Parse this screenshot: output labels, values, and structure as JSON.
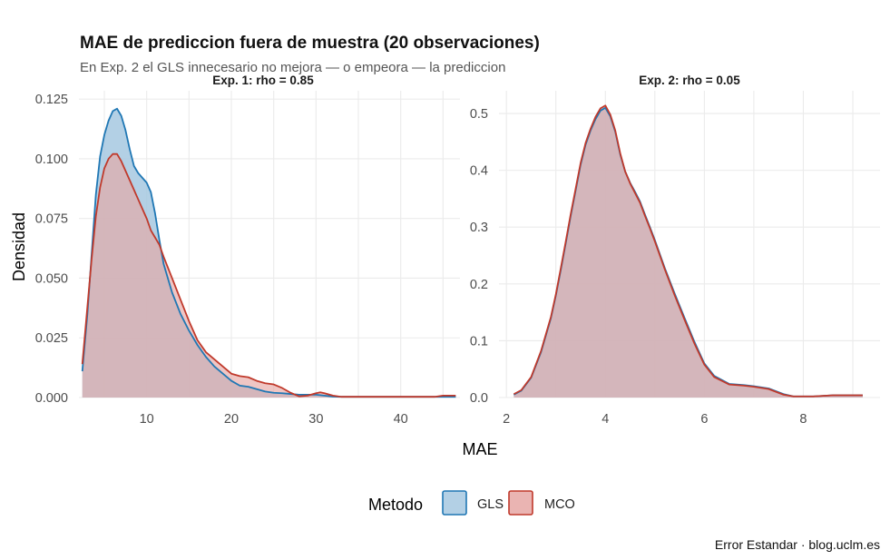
{
  "chart_data": {
    "type": "area",
    "title": "MAE de prediccion fuera de muestra (20 observaciones)",
    "subtitle": "En Exp. 2 el GLS innecesario no mejora — o empeora — la prediccion",
    "xlabel": "MAE",
    "ylabel": "Densidad",
    "caption": "Error Estandar · blog.uclm.es",
    "grid": true,
    "legend": {
      "title": "Metodo",
      "position": "bottom",
      "entries": [
        {
          "label": "GLS",
          "fill": "#a6c8e0",
          "stroke": "#1f77b4"
        },
        {
          "label": "MCO",
          "fill": "#e6a7a5",
          "stroke": "#c0392b"
        }
      ]
    },
    "panels": [
      {
        "strip": "Exp. 1: rho = 0.85",
        "xlim": [
          2,
          47
        ],
        "ylim": [
          0,
          0.1285
        ],
        "xticks": [
          10,
          20,
          30,
          40
        ],
        "xtick_labels": [
          "10",
          "20",
          "30",
          "40"
        ],
        "yticks": [
          0,
          0.025,
          0.05,
          0.075,
          0.1,
          0.125
        ],
        "ytick_labels": [
          "0.000",
          "0.025",
          "0.050",
          "0.075",
          "0.100",
          "0.125"
        ],
        "series": [
          {
            "name": "GLS",
            "x": [
              2.4,
              3.0,
              3.5,
              4.0,
              4.5,
              5.0,
              5.5,
              6.0,
              6.5,
              7.0,
              7.5,
              8.0,
              8.5,
              9.0,
              9.5,
              10.0,
              10.5,
              11.0,
              11.5,
              12.0,
              13.0,
              14.0,
              15.0,
              16.0,
              17.0,
              18.0,
              19.0,
              20.0,
              21.0,
              22.0,
              23.0,
              24.0,
              25.0,
              26.0,
              27.0,
              28.0,
              29.0,
              30.0,
              31.0,
              32.0,
              33.0,
              36.0,
              40.0,
              44.0,
              46.5
            ],
            "y": [
              0.011,
              0.035,
              0.06,
              0.085,
              0.101,
              0.11,
              0.116,
              0.12,
              0.121,
              0.118,
              0.112,
              0.104,
              0.097,
              0.094,
              0.092,
              0.09,
              0.086,
              0.077,
              0.066,
              0.056,
              0.044,
              0.035,
              0.028,
              0.022,
              0.017,
              0.013,
              0.01,
              0.007,
              0.005,
              0.0045,
              0.0035,
              0.0025,
              0.002,
              0.0018,
              0.0015,
              0.0012,
              0.0012,
              0.0012,
              0.0008,
              0.0004,
              0.0003,
              0.0003,
              0.0003,
              0.0003,
              0.0003
            ]
          },
          {
            "name": "MCO",
            "x": [
              2.4,
              3.0,
              3.5,
              4.0,
              4.5,
              5.0,
              5.5,
              6.0,
              6.5,
              7.0,
              7.5,
              8.0,
              8.5,
              9.0,
              9.5,
              10.0,
              10.5,
              11.0,
              11.5,
              12.0,
              13.0,
              14.0,
              15.0,
              16.0,
              17.0,
              18.0,
              19.0,
              20.0,
              21.0,
              22.0,
              23.0,
              24.0,
              25.0,
              26.0,
              27.0,
              28.0,
              29.0,
              30.0,
              30.5,
              31.0,
              32.0,
              33.0,
              36.0,
              40.0,
              44.0,
              45.0,
              46.5
            ],
            "y": [
              0.014,
              0.038,
              0.058,
              0.076,
              0.088,
              0.096,
              0.1,
              0.102,
              0.102,
              0.099,
              0.095,
              0.091,
              0.087,
              0.083,
              0.079,
              0.075,
              0.07,
              0.067,
              0.064,
              0.059,
              0.05,
              0.041,
              0.032,
              0.024,
              0.019,
              0.016,
              0.013,
              0.01,
              0.009,
              0.0085,
              0.007,
              0.006,
              0.0055,
              0.004,
              0.002,
              0.0005,
              0.0008,
              0.0018,
              0.0022,
              0.0018,
              0.0008,
              0.0003,
              0.0003,
              0.0003,
              0.0003,
              0.0008,
              0.0008
            ]
          }
        ]
      },
      {
        "strip": "Exp. 2: rho = 0.05",
        "xlim": [
          1.85,
          9.55
        ],
        "ylim": [
          0,
          0.54
        ],
        "xticks": [
          2,
          4,
          6,
          8
        ],
        "xtick_labels": [
          "2",
          "4",
          "6",
          "8"
        ],
        "yticks": [
          0,
          0.1,
          0.2,
          0.3,
          0.4,
          0.5
        ],
        "ytick_labels": [
          "0.0",
          "0.1",
          "0.2",
          "0.3",
          "0.4",
          "0.5"
        ],
        "series": [
          {
            "name": "GLS",
            "x": [
              2.15,
              2.3,
              2.5,
              2.7,
              2.9,
              3.0,
              3.1,
              3.2,
              3.3,
              3.4,
              3.5,
              3.6,
              3.7,
              3.8,
              3.9,
              4.0,
              4.1,
              4.2,
              4.3,
              4.4,
              4.5,
              4.6,
              4.7,
              4.8,
              4.9,
              5.0,
              5.2,
              5.4,
              5.6,
              5.8,
              6.0,
              6.2,
              6.5,
              6.8,
              7.0,
              7.3,
              7.6,
              7.8,
              8.2,
              8.6,
              9.2
            ],
            "y": [
              0.005,
              0.012,
              0.035,
              0.08,
              0.14,
              0.18,
              0.225,
              0.272,
              0.32,
              0.365,
              0.41,
              0.445,
              0.47,
              0.49,
              0.505,
              0.51,
              0.495,
              0.468,
              0.428,
              0.398,
              0.378,
              0.362,
              0.345,
              0.322,
              0.3,
              0.277,
              0.228,
              0.183,
              0.14,
              0.098,
              0.06,
              0.038,
              0.024,
              0.022,
              0.02,
              0.016,
              0.006,
              0.002,
              0.002,
              0.004,
              0.004
            ]
          },
          {
            "name": "MCO",
            "x": [
              2.15,
              2.3,
              2.5,
              2.7,
              2.9,
              3.0,
              3.1,
              3.2,
              3.3,
              3.4,
              3.5,
              3.6,
              3.7,
              3.8,
              3.9,
              4.0,
              4.1,
              4.2,
              4.3,
              4.4,
              4.5,
              4.6,
              4.7,
              4.8,
              4.9,
              5.0,
              5.2,
              5.4,
              5.6,
              5.8,
              6.0,
              6.2,
              6.5,
              6.8,
              7.0,
              7.3,
              7.6,
              7.8,
              8.2,
              8.6,
              9.2
            ],
            "y": [
              0.006,
              0.013,
              0.036,
              0.082,
              0.142,
              0.182,
              0.228,
              0.275,
              0.323,
              0.368,
              0.413,
              0.448,
              0.473,
              0.494,
              0.509,
              0.514,
              0.498,
              0.47,
              0.43,
              0.398,
              0.377,
              0.36,
              0.343,
              0.32,
              0.298,
              0.275,
              0.226,
              0.18,
              0.137,
              0.095,
              0.058,
              0.036,
              0.023,
              0.021,
              0.019,
              0.015,
              0.005,
              0.002,
              0.002,
              0.004,
              0.004
            ]
          }
        ]
      }
    ]
  }
}
